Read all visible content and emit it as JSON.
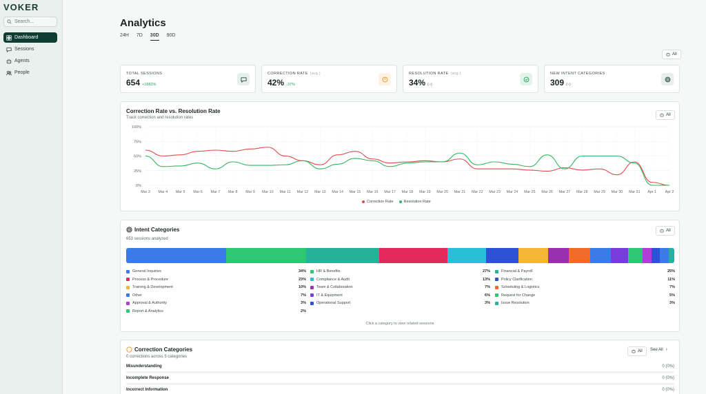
{
  "sidebar": {
    "logo": "VOKER",
    "search_placeholder": "Search...",
    "items": [
      {
        "label": "Dashboard",
        "icon": "dashboard-icon",
        "active": true
      },
      {
        "label": "Sessions",
        "icon": "chat-icon",
        "active": false
      },
      {
        "label": "Agents",
        "icon": "robot-icon",
        "active": false
      },
      {
        "label": "People",
        "icon": "people-icon",
        "active": false
      }
    ]
  },
  "header": {
    "title": "Analytics",
    "ranges": [
      "24H",
      "7D",
      "30D",
      "90D"
    ],
    "active_range": "30D",
    "filter_label": "All"
  },
  "kpis": [
    {
      "label": "Total Sessions",
      "avg": "",
      "value": "654",
      "delta": "+1882%",
      "delta_color": "#22a05a",
      "icon": "chat-icon",
      "icon_bg": "#e6efec",
      "icon_color": "#2c4a42"
    },
    {
      "label": "Correction Rate",
      "avg": "(avg.)",
      "value": "42%",
      "delta": "-37%",
      "delta_color": "#22a05a",
      "icon": "clock-icon",
      "icon_bg": "#fdf1e0",
      "icon_color": "#e0922a"
    },
    {
      "label": "Resolution Rate",
      "avg": "(avg.)",
      "value": "34%",
      "delta": "(–)",
      "delta_color": "#5e6b67",
      "icon": "check-circle-icon",
      "icon_bg": "#e3f3e9",
      "icon_color": "#28a25e"
    },
    {
      "label": "New Intent Categories",
      "avg": "",
      "value": "309",
      "delta": "(–)",
      "delta_color": "#5e6b67",
      "icon": "target-icon",
      "icon_bg": "#e6efec",
      "icon_color": "#2c4a42"
    }
  ],
  "rate_chart": {
    "filter_label": "All",
    "chart_data": {
      "type": "line",
      "title": "Correction Rate vs. Resolution Rate",
      "subtitle": "Track correction and resolution rates",
      "x": [
        "Mar 3",
        "Mar 4",
        "Mar 5",
        "Mar 6",
        "Mar 7",
        "Mar 8",
        "Mar 9",
        "Mar 10",
        "Mar 11",
        "Mar 12",
        "Mar 13",
        "Mar 14",
        "Mar 15",
        "Mar 16",
        "Mar 17",
        "Mar 18",
        "Mar 19",
        "Mar 20",
        "Mar 21",
        "Mar 22",
        "Mar 23",
        "Mar 24",
        "Mar 25",
        "Mar 26",
        "Mar 27",
        "Mar 28",
        "Mar 29",
        "Mar 30",
        "Mar 31",
        "Apr 1",
        "Apr 2"
      ],
      "yticks": [
        "0%",
        "25%",
        "50%",
        "75%",
        "100%"
      ],
      "ylim": [
        0,
        100
      ],
      "grid": true,
      "legend_position": "bottom",
      "series": [
        {
          "name": "Correction Rate",
          "color": "#e04a4a",
          "values": [
            60,
            50,
            52,
            58,
            60,
            58,
            62,
            65,
            50,
            42,
            35,
            52,
            58,
            45,
            38,
            40,
            42,
            40,
            45,
            28,
            28,
            28,
            26,
            24,
            30,
            26,
            28,
            18,
            40,
            5,
            0
          ]
        },
        {
          "name": "Resolution Rate",
          "color": "#2fb561",
          "values": [
            50,
            32,
            33,
            38,
            28,
            40,
            34,
            34,
            35,
            42,
            28,
            36,
            46,
            42,
            32,
            38,
            40,
            40,
            55,
            35,
            40,
            36,
            32,
            52,
            28,
            50,
            50,
            50,
            38,
            0,
            0
          ]
        }
      ]
    }
  },
  "intent": {
    "title": "Intent Categories",
    "subtitle": "653 sessions analyzed",
    "filter_label": "All",
    "hint": "Click a category to view related sessions",
    "bar_segments": [
      {
        "color": "#3b7be8",
        "share": 18.2
      },
      {
        "color": "#2ec772",
        "share": 14.6
      },
      {
        "color": "#26b29a",
        "share": 13.4
      },
      {
        "color": "#e5285a",
        "share": 12.4
      },
      {
        "color": "#27c0d6",
        "share": 7.0
      },
      {
        "color": "#2d52d6",
        "share": 6.0
      },
      {
        "color": "#f5b535",
        "share": 5.4
      },
      {
        "color": "#9a2fb0",
        "share": 3.8
      },
      {
        "color": "#f26b2a",
        "share": 3.8
      },
      {
        "color": "#3b7be8",
        "share": 3.8
      },
      {
        "color": "#7a3bdc",
        "share": 3.2
      },
      {
        "color": "#2ec772",
        "share": 2.6
      },
      {
        "color": "#b03ed6",
        "share": 1.6
      },
      {
        "color": "#2d52d6",
        "share": 1.6
      },
      {
        "color": "#3b7be8",
        "share": 1.6
      },
      {
        "color": "#26b29a",
        "share": 1.0
      }
    ],
    "columns": [
      [
        {
          "name": "General Inquiries",
          "pct": "34%",
          "color": "#3b7be8"
        },
        {
          "name": "Process & Procedure",
          "pct": "23%",
          "color": "#e5285a"
        },
        {
          "name": "Training & Development",
          "pct": "10%",
          "color": "#f5b535"
        },
        {
          "name": "Other",
          "pct": "7%",
          "color": "#3b7be8"
        },
        {
          "name": "Approval & Authority",
          "pct": "3%",
          "color": "#b03ed6"
        },
        {
          "name": "Report & Analytics",
          "pct": "2%",
          "color": "#2ec772"
        }
      ],
      [
        {
          "name": "HR & Benefits",
          "pct": "27%",
          "color": "#2ec772"
        },
        {
          "name": "Compliance & Audit",
          "pct": "13%",
          "color": "#27c0d6"
        },
        {
          "name": "Team & Collaboration",
          "pct": "7%",
          "color": "#9a2fb0"
        },
        {
          "name": "IT & Equipment",
          "pct": "6%",
          "color": "#7a3bdc"
        },
        {
          "name": "Operational Support",
          "pct": "3%",
          "color": "#2d52d6"
        }
      ],
      [
        {
          "name": "Financial & Payroll",
          "pct": "25%",
          "color": "#26b29a"
        },
        {
          "name": "Policy Clarification",
          "pct": "11%",
          "color": "#2d52d6"
        },
        {
          "name": "Scheduling & Logistics",
          "pct": "7%",
          "color": "#f26b2a"
        },
        {
          "name": "Request for Change",
          "pct": "5%",
          "color": "#2ec772"
        },
        {
          "name": "Issue Resolution",
          "pct": "3%",
          "color": "#26b29a"
        }
      ]
    ]
  },
  "corrections": {
    "title": "Correction Categories",
    "subtitle": "0 corrections across 5 categories",
    "filter_label": "All",
    "see_all": "See All",
    "rows": [
      {
        "name": "Misunderstanding",
        "value": "0 (0%)"
      },
      {
        "name": "Incomplete Response",
        "value": "0 (0%)"
      },
      {
        "name": "Incorrect Information",
        "value": "0 (0%)"
      }
    ]
  }
}
